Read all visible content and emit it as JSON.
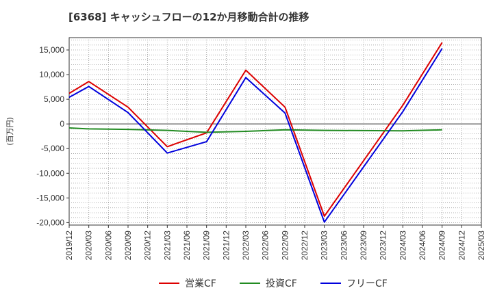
{
  "chart_data": {
    "type": "line",
    "title": "[6368]  キャッシュフローの12か月移動合計の推移",
    "ylabel": "(百万円)",
    "xlabel": "",
    "ylim": [
      -20500,
      17500
    ],
    "yticks": [
      15000,
      10000,
      5000,
      0,
      -5000,
      -10000,
      -15000,
      -20000
    ],
    "ytick_labels": [
      "15,000",
      "10,000",
      "5,000",
      "0",
      "-5,000",
      "-10,000",
      "-15,000",
      "-20,000"
    ],
    "categories": [
      "2019/12",
      "2020/03",
      "2020/06",
      "2020/09",
      "2020/12",
      "2021/03",
      "2021/06",
      "2021/09",
      "2021/12",
      "2022/03",
      "2022/06",
      "2022/09",
      "2022/12",
      "2023/03",
      "2023/06",
      "2023/09",
      "2023/12",
      "2024/03",
      "2024/06",
      "2024/09",
      "2024/12",
      "2025/03"
    ],
    "grid": true,
    "legend_position": "bottom",
    "series": [
      {
        "name": "営業CF",
        "color": "#dd0000",
        "points": [
          [
            0,
            6200
          ],
          [
            1,
            8600
          ],
          [
            3,
            3400
          ],
          [
            5,
            -4600
          ],
          [
            7,
            -1800
          ],
          [
            9,
            10900
          ],
          [
            11,
            3400
          ],
          [
            13,
            -18700
          ],
          [
            17,
            3800
          ],
          [
            19,
            16500
          ]
        ]
      },
      {
        "name": "投資CF",
        "color": "#228B22",
        "points": [
          [
            0,
            -800
          ],
          [
            1,
            -1000
          ],
          [
            3,
            -1100
          ],
          [
            5,
            -1300
          ],
          [
            7,
            -1700
          ],
          [
            9,
            -1500
          ],
          [
            11,
            -1200
          ],
          [
            13,
            -1300
          ],
          [
            17,
            -1400
          ],
          [
            19,
            -1200
          ]
        ]
      },
      {
        "name": "フリーCF",
        "color": "#0000dd",
        "points": [
          [
            0,
            5400
          ],
          [
            1,
            7600
          ],
          [
            3,
            2300
          ],
          [
            5,
            -5900
          ],
          [
            7,
            -3600
          ],
          [
            9,
            9400
          ],
          [
            11,
            2200
          ],
          [
            13,
            -19900
          ],
          [
            17,
            2500
          ],
          [
            19,
            15300
          ]
        ]
      }
    ]
  }
}
